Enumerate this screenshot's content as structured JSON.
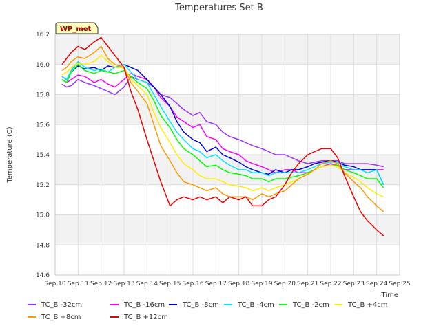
{
  "chart_data": {
    "type": "line",
    "title": "Temperatures Set B",
    "xlabel": "Time",
    "ylabel": "Temperature (C)",
    "badge": "WP_met",
    "xlim": [
      10.0,
      25.0
    ],
    "ylim": [
      14.6,
      16.2
    ],
    "yticks": [
      14.6,
      14.8,
      15.0,
      15.2,
      15.4,
      15.6,
      15.8,
      16.0,
      16.2
    ],
    "xticks": [
      {
        "v": 10,
        "label": "Sep 10"
      },
      {
        "v": 11,
        "label": "Sep 11"
      },
      {
        "v": 12,
        "label": "Sep 12"
      },
      {
        "v": 13,
        "label": "Sep 13"
      },
      {
        "v": 14,
        "label": "Sep 14"
      },
      {
        "v": 15,
        "label": "Sep 15"
      },
      {
        "v": 16,
        "label": "Sep 16"
      },
      {
        "v": 17,
        "label": "Sep 17"
      },
      {
        "v": 18,
        "label": "Sep 18"
      },
      {
        "v": 19,
        "label": "Sep 19"
      },
      {
        "v": 20,
        "label": "Sep 20"
      },
      {
        "v": 21,
        "label": "Sep 21"
      },
      {
        "v": 22,
        "label": "Sep 22"
      },
      {
        "v": 23,
        "label": "Sep 23"
      },
      {
        "v": 24,
        "label": "Sep 24"
      },
      {
        "v": 25,
        "label": "Sep 25"
      }
    ],
    "grid": true,
    "legend_position": "bottom",
    "series": [
      {
        "name": "TC_B -32cm",
        "color": "#9b30ff",
        "x": [
          10.3,
          10.5,
          10.7,
          11.0,
          11.3,
          11.7,
          12.0,
          12.3,
          12.6,
          13.0,
          13.3,
          13.6,
          14.0,
          14.3,
          14.6,
          15.0,
          15.3,
          15.6,
          16.0,
          16.3,
          16.6,
          17.0,
          17.3,
          17.6,
          18.0,
          18.3,
          18.6,
          19.0,
          19.3,
          19.6,
          20.0,
          20.3,
          20.6,
          21.0,
          21.3,
          21.6,
          22.0,
          22.3,
          22.6,
          23.0,
          23.3,
          23.6,
          24.0,
          24.3
        ],
        "y": [
          15.87,
          15.85,
          15.86,
          15.9,
          15.88,
          15.86,
          15.84,
          15.82,
          15.8,
          15.85,
          15.92,
          15.9,
          15.88,
          15.85,
          15.8,
          15.78,
          15.74,
          15.7,
          15.66,
          15.68,
          15.62,
          15.6,
          15.55,
          15.52,
          15.5,
          15.48,
          15.46,
          15.44,
          15.42,
          15.4,
          15.4,
          15.38,
          15.36,
          15.34,
          15.35,
          15.36,
          15.36,
          15.36,
          15.34,
          15.34,
          15.34,
          15.34,
          15.33,
          15.32
        ]
      },
      {
        "name": "TC_B -16cm",
        "color": "#ff00ff",
        "x": [
          10.3,
          10.5,
          10.7,
          11.0,
          11.3,
          11.7,
          12.0,
          12.3,
          12.6,
          13.0,
          13.3,
          13.6,
          14.0,
          14.3,
          14.6,
          15.0,
          15.3,
          15.6,
          16.0,
          16.3,
          16.6,
          17.0,
          17.3,
          17.6,
          18.0,
          18.3,
          18.6,
          19.0,
          19.3,
          19.6,
          20.0,
          20.3,
          20.6,
          21.0,
          21.3,
          21.6,
          22.0,
          22.3,
          22.6,
          23.0,
          23.3,
          23.6,
          24.0,
          24.3
        ],
        "y": [
          15.9,
          15.88,
          15.9,
          15.93,
          15.92,
          15.88,
          15.9,
          15.87,
          15.85,
          15.9,
          15.94,
          15.92,
          15.9,
          15.85,
          15.78,
          15.72,
          15.65,
          15.62,
          15.58,
          15.6,
          15.52,
          15.5,
          15.44,
          15.42,
          15.4,
          15.36,
          15.34,
          15.32,
          15.3,
          15.28,
          15.3,
          15.3,
          15.28,
          15.28,
          15.3,
          15.32,
          15.34,
          15.33,
          15.3,
          15.3,
          15.3,
          15.3,
          15.3,
          15.3
        ]
      },
      {
        "name": "TC_B -8cm",
        "color": "#0000dd",
        "x": [
          10.3,
          10.5,
          10.7,
          11.0,
          11.3,
          11.7,
          12.0,
          12.3,
          12.6,
          13.0,
          13.3,
          13.6,
          14.0,
          14.3,
          14.6,
          15.0,
          15.3,
          15.6,
          16.0,
          16.3,
          16.6,
          17.0,
          17.3,
          17.6,
          18.0,
          18.3,
          18.6,
          19.0,
          19.3,
          19.6,
          20.0,
          20.3,
          20.6,
          21.0,
          21.3,
          21.6,
          22.0,
          22.3,
          22.6,
          23.0,
          23.3,
          23.6,
          24.0,
          24.3
        ],
        "y": [
          15.92,
          15.9,
          15.95,
          15.99,
          15.97,
          15.98,
          15.96,
          15.99,
          15.98,
          16.0,
          15.98,
          15.96,
          15.9,
          15.85,
          15.8,
          15.72,
          15.62,
          15.55,
          15.5,
          15.48,
          15.42,
          15.45,
          15.4,
          15.38,
          15.35,
          15.32,
          15.3,
          15.28,
          15.27,
          15.3,
          15.28,
          15.3,
          15.3,
          15.32,
          15.34,
          15.35,
          15.36,
          15.35,
          15.33,
          15.32,
          15.3,
          15.3,
          15.3,
          15.2
        ]
      },
      {
        "name": "TC_B -4cm",
        "color": "#00e5ff",
        "x": [
          10.3,
          10.5,
          10.7,
          11.0,
          11.3,
          11.7,
          12.0,
          12.3,
          12.6,
          13.0,
          13.3,
          13.6,
          14.0,
          14.3,
          14.6,
          15.0,
          15.3,
          15.6,
          16.0,
          16.3,
          16.6,
          17.0,
          17.3,
          17.6,
          18.0,
          18.3,
          18.6,
          19.0,
          19.3,
          19.6,
          20.0,
          20.3,
          20.6,
          21.0,
          21.3,
          21.6,
          22.0,
          22.3,
          22.6,
          23.0,
          23.3,
          23.6,
          24.0,
          24.3
        ],
        "y": [
          15.92,
          15.9,
          15.96,
          16.02,
          15.98,
          15.96,
          15.97,
          15.95,
          15.98,
          16.0,
          15.95,
          15.9,
          15.88,
          15.8,
          15.72,
          15.62,
          15.55,
          15.5,
          15.44,
          15.42,
          15.38,
          15.4,
          15.36,
          15.33,
          15.3,
          15.3,
          15.28,
          15.28,
          15.26,
          15.28,
          15.28,
          15.28,
          15.28,
          15.3,
          15.32,
          15.34,
          15.35,
          15.35,
          15.32,
          15.3,
          15.3,
          15.28,
          15.3,
          15.2
        ]
      },
      {
        "name": "TC_B -2cm",
        "color": "#00ff00",
        "x": [
          10.3,
          10.5,
          10.7,
          11.0,
          11.3,
          11.7,
          12.0,
          12.3,
          12.6,
          13.0,
          13.3,
          13.6,
          14.0,
          14.3,
          14.6,
          15.0,
          15.3,
          15.6,
          16.0,
          16.3,
          16.6,
          17.0,
          17.3,
          17.6,
          18.0,
          18.3,
          18.6,
          19.0,
          19.3,
          19.6,
          20.0,
          20.3,
          20.6,
          21.0,
          21.3,
          21.6,
          22.0,
          22.3,
          22.6,
          23.0,
          23.3,
          23.6,
          24.0,
          24.3
        ],
        "y": [
          15.9,
          15.88,
          15.95,
          16.0,
          15.96,
          15.94,
          15.96,
          15.95,
          15.94,
          15.96,
          15.92,
          15.88,
          15.84,
          15.76,
          15.66,
          15.58,
          15.5,
          15.44,
          15.4,
          15.36,
          15.32,
          15.33,
          15.3,
          15.28,
          15.27,
          15.26,
          15.24,
          15.24,
          15.22,
          15.24,
          15.24,
          15.25,
          15.26,
          15.28,
          15.3,
          15.32,
          15.33,
          15.33,
          15.3,
          15.28,
          15.26,
          15.24,
          15.24,
          15.18
        ]
      },
      {
        "name": "TC_B +4cm",
        "color": "#ffee00",
        "x": [
          10.3,
          10.5,
          10.7,
          11.0,
          11.3,
          11.7,
          12.0,
          12.3,
          12.6,
          13.0,
          13.3,
          13.6,
          14.0,
          14.3,
          14.6,
          15.0,
          15.3,
          15.6,
          16.0,
          16.3,
          16.6,
          17.0,
          17.3,
          17.6,
          18.0,
          18.3,
          18.6,
          19.0,
          19.3,
          19.6,
          20.0,
          20.3,
          20.6,
          21.0,
          21.3,
          21.6,
          22.0,
          22.3,
          22.6,
          23.0,
          23.3,
          23.6,
          24.0,
          24.3
        ],
        "y": [
          15.93,
          15.95,
          15.98,
          16.01,
          16.0,
          16.02,
          16.06,
          16.02,
          15.98,
          15.98,
          15.9,
          15.86,
          15.8,
          15.68,
          15.58,
          15.48,
          15.4,
          15.34,
          15.3,
          15.26,
          15.24,
          15.24,
          15.22,
          15.2,
          15.19,
          15.18,
          15.16,
          15.18,
          15.16,
          15.18,
          15.2,
          15.22,
          15.24,
          15.27,
          15.3,
          15.32,
          15.33,
          15.32,
          15.28,
          15.25,
          15.22,
          15.18,
          15.14,
          15.12
        ]
      },
      {
        "name": "TC_B +8cm",
        "color": "#ff9900",
        "x": [
          10.3,
          10.5,
          10.7,
          11.0,
          11.3,
          11.7,
          12.0,
          12.3,
          12.6,
          13.0,
          13.3,
          13.6,
          14.0,
          14.3,
          14.6,
          15.0,
          15.3,
          15.6,
          16.0,
          16.3,
          16.6,
          17.0,
          17.3,
          17.6,
          18.0,
          18.3,
          18.6,
          19.0,
          19.3,
          19.6,
          20.0,
          20.3,
          20.6,
          21.0,
          21.3,
          21.6,
          22.0,
          22.3,
          22.6,
          23.0,
          23.3,
          23.6,
          24.0,
          24.3
        ],
        "y": [
          15.96,
          15.98,
          16.02,
          16.05,
          16.04,
          16.08,
          16.12,
          16.04,
          16.0,
          15.98,
          15.88,
          15.82,
          15.74,
          15.6,
          15.46,
          15.36,
          15.28,
          15.22,
          15.2,
          15.18,
          15.16,
          15.18,
          15.14,
          15.12,
          15.12,
          15.12,
          15.1,
          15.14,
          15.12,
          15.14,
          15.16,
          15.2,
          15.24,
          15.27,
          15.3,
          15.34,
          15.36,
          15.34,
          15.28,
          15.22,
          15.18,
          15.12,
          15.06,
          15.02
        ]
      },
      {
        "name": "TC_B +12cm",
        "color": "#ee0000",
        "x": [
          10.3,
          10.5,
          10.7,
          11.0,
          11.3,
          11.7,
          12.0,
          12.3,
          12.6,
          13.0,
          13.3,
          13.6,
          14.0,
          14.3,
          14.6,
          15.0,
          15.3,
          15.6,
          16.0,
          16.3,
          16.6,
          17.0,
          17.3,
          17.6,
          18.0,
          18.3,
          18.6,
          19.0,
          19.3,
          19.6,
          20.0,
          20.3,
          20.6,
          21.0,
          21.3,
          21.6,
          22.0,
          22.3,
          22.6,
          23.0,
          23.3,
          23.6,
          24.0,
          24.3
        ],
        "y": [
          16.0,
          16.04,
          16.08,
          16.12,
          16.1,
          16.15,
          16.18,
          16.12,
          16.06,
          15.98,
          15.82,
          15.7,
          15.5,
          15.36,
          15.22,
          15.06,
          15.1,
          15.12,
          15.1,
          15.12,
          15.1,
          15.12,
          15.08,
          15.12,
          15.1,
          15.12,
          15.06,
          15.06,
          15.1,
          15.12,
          15.2,
          15.28,
          15.34,
          15.4,
          15.42,
          15.44,
          15.44,
          15.38,
          15.26,
          15.12,
          15.02,
          14.96,
          14.9,
          14.86
        ]
      }
    ]
  }
}
